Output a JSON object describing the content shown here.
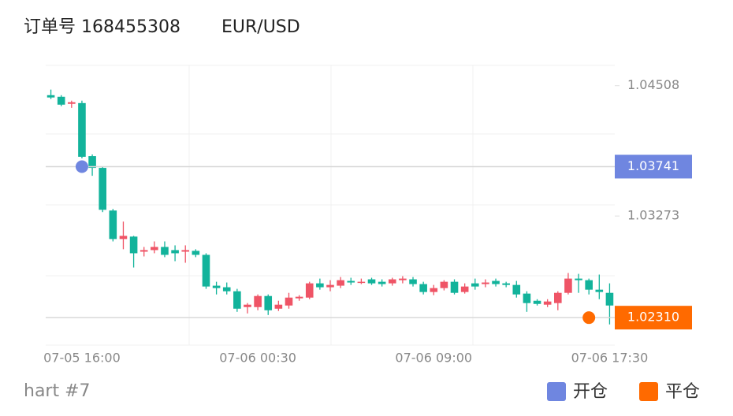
{
  "header": {
    "order": "订单号 168455308",
    "symbol": "EUR/USD"
  },
  "chart_data": {
    "type": "candlestick",
    "categories": [
      null,
      null,
      null,
      "07-05 16:00",
      null,
      null,
      null,
      null,
      null,
      null,
      null,
      null,
      null,
      null,
      null,
      null,
      null,
      null,
      null,
      null,
      "07-06 00:30",
      null,
      null,
      null,
      null,
      null,
      null,
      null,
      null,
      null,
      null,
      null,
      null,
      null,
      null,
      null,
      null,
      "07-06 09:00",
      null,
      null,
      null,
      null,
      null,
      null,
      null,
      null,
      null,
      null,
      null,
      null,
      null,
      null,
      null,
      null,
      "07-06 17:30"
    ],
    "open": [
      1.04418,
      1.04403,
      1.04336,
      1.04343,
      1.03841,
      1.03729,
      1.03325,
      1.03055,
      1.03078,
      1.02935,
      1.0295,
      1.0298,
      1.0295,
      1.02935,
      1.02943,
      1.02905,
      1.02613,
      1.02598,
      1.0256,
      1.0241,
      1.0241,
      1.02515,
      1.02395,
      1.02425,
      1.02493,
      1.025,
      1.02635,
      1.02598,
      1.02613,
      1.02658,
      1.02643,
      1.02673,
      1.0265,
      1.02635,
      1.02665,
      1.02673,
      1.02628,
      1.02553,
      1.0259,
      1.0265,
      1.02553,
      1.02635,
      1.02628,
      1.02658,
      1.02635,
      1.0262,
      1.02538,
      1.0247,
      1.02433,
      1.02448,
      1.02545,
      1.0268,
      1.02665,
      1.02575,
      1.02545
    ],
    "high": [
      1.04471,
      1.04418,
      1.04366,
      1.04366,
      1.03856,
      1.03744,
      1.0334,
      1.0322,
      1.03085,
      1.0298,
      1.03032,
      1.03032,
      1.02995,
      1.02995,
      1.02958,
      1.0292,
      1.0265,
      1.02643,
      1.02583,
      1.02448,
      1.0253,
      1.0253,
      1.0247,
      1.02545,
      1.02523,
      1.0265,
      1.0268,
      1.02665,
      1.02695,
      1.02688,
      1.0268,
      1.02688,
      1.02673,
      1.02688,
      1.02703,
      1.02695,
      1.0265,
      1.0262,
      1.02665,
      1.02673,
      1.02635,
      1.0268,
      1.02673,
      1.0268,
      1.0265,
      1.02658,
      1.0256,
      1.02485,
      1.02485,
      1.0256,
      1.02733,
      1.02725,
      1.0268,
      1.02718,
      1.02635
    ],
    "low": [
      1.04381,
      1.04313,
      1.04298,
      1.03819,
      1.03654,
      1.0331,
      1.03032,
      1.02958,
      1.02785,
      1.0289,
      1.0292,
      1.02883,
      1.02845,
      1.0283,
      1.02883,
      1.02583,
      1.0253,
      1.0253,
      1.02365,
      1.0235,
      1.0238,
      1.02335,
      1.02373,
      1.02395,
      1.0247,
      1.02485,
      1.02575,
      1.0256,
      1.0259,
      1.0262,
      1.02628,
      1.0262,
      1.02605,
      1.02613,
      1.02635,
      1.02605,
      1.0253,
      1.02523,
      1.02568,
      1.0253,
      1.02538,
      1.02575,
      1.02598,
      1.02605,
      1.02598,
      1.025,
      1.02365,
      1.02425,
      1.0241,
      1.0238,
      1.0253,
      1.02545,
      1.0253,
      1.02485,
      1.02246
    ],
    "close": [
      1.04396,
      1.04328,
      1.04351,
      1.03834,
      1.03729,
      1.03332,
      1.03055,
      1.03085,
      1.0292,
      1.0295,
      1.0298,
      1.02905,
      1.0292,
      1.0295,
      1.02905,
      1.02605,
      1.0259,
      1.0256,
      1.02395,
      1.02433,
      1.02515,
      1.0238,
      1.02433,
      1.025,
      1.02508,
      1.02635,
      1.02598,
      1.0262,
      1.02665,
      1.02643,
      1.0265,
      1.02635,
      1.02628,
      1.02673,
      1.0268,
      1.02628,
      1.02553,
      1.0259,
      1.0265,
      1.02545,
      1.02605,
      1.02605,
      1.02643,
      1.02628,
      1.0262,
      1.0253,
      1.02448,
      1.0244,
      1.02463,
      1.02545,
      1.0268,
      1.02665,
      1.02575,
      1.02553,
      1.02425
    ],
    "up_color": "#ef5466",
    "down_color": "#12b39b",
    "ylim": [
      1.0205,
      1.047
    ],
    "yticks": [
      1.04508,
      1.03273
    ],
    "markers": [
      {
        "name": "开仓",
        "color": "#6f86e0",
        "index": 3,
        "value": 1.03741
      },
      {
        "name": "平仓",
        "color": "#ff6a00",
        "index": 52,
        "value": 1.0231,
        "label": "1.02310"
      }
    ]
  },
  "footer": "hart #7"
}
